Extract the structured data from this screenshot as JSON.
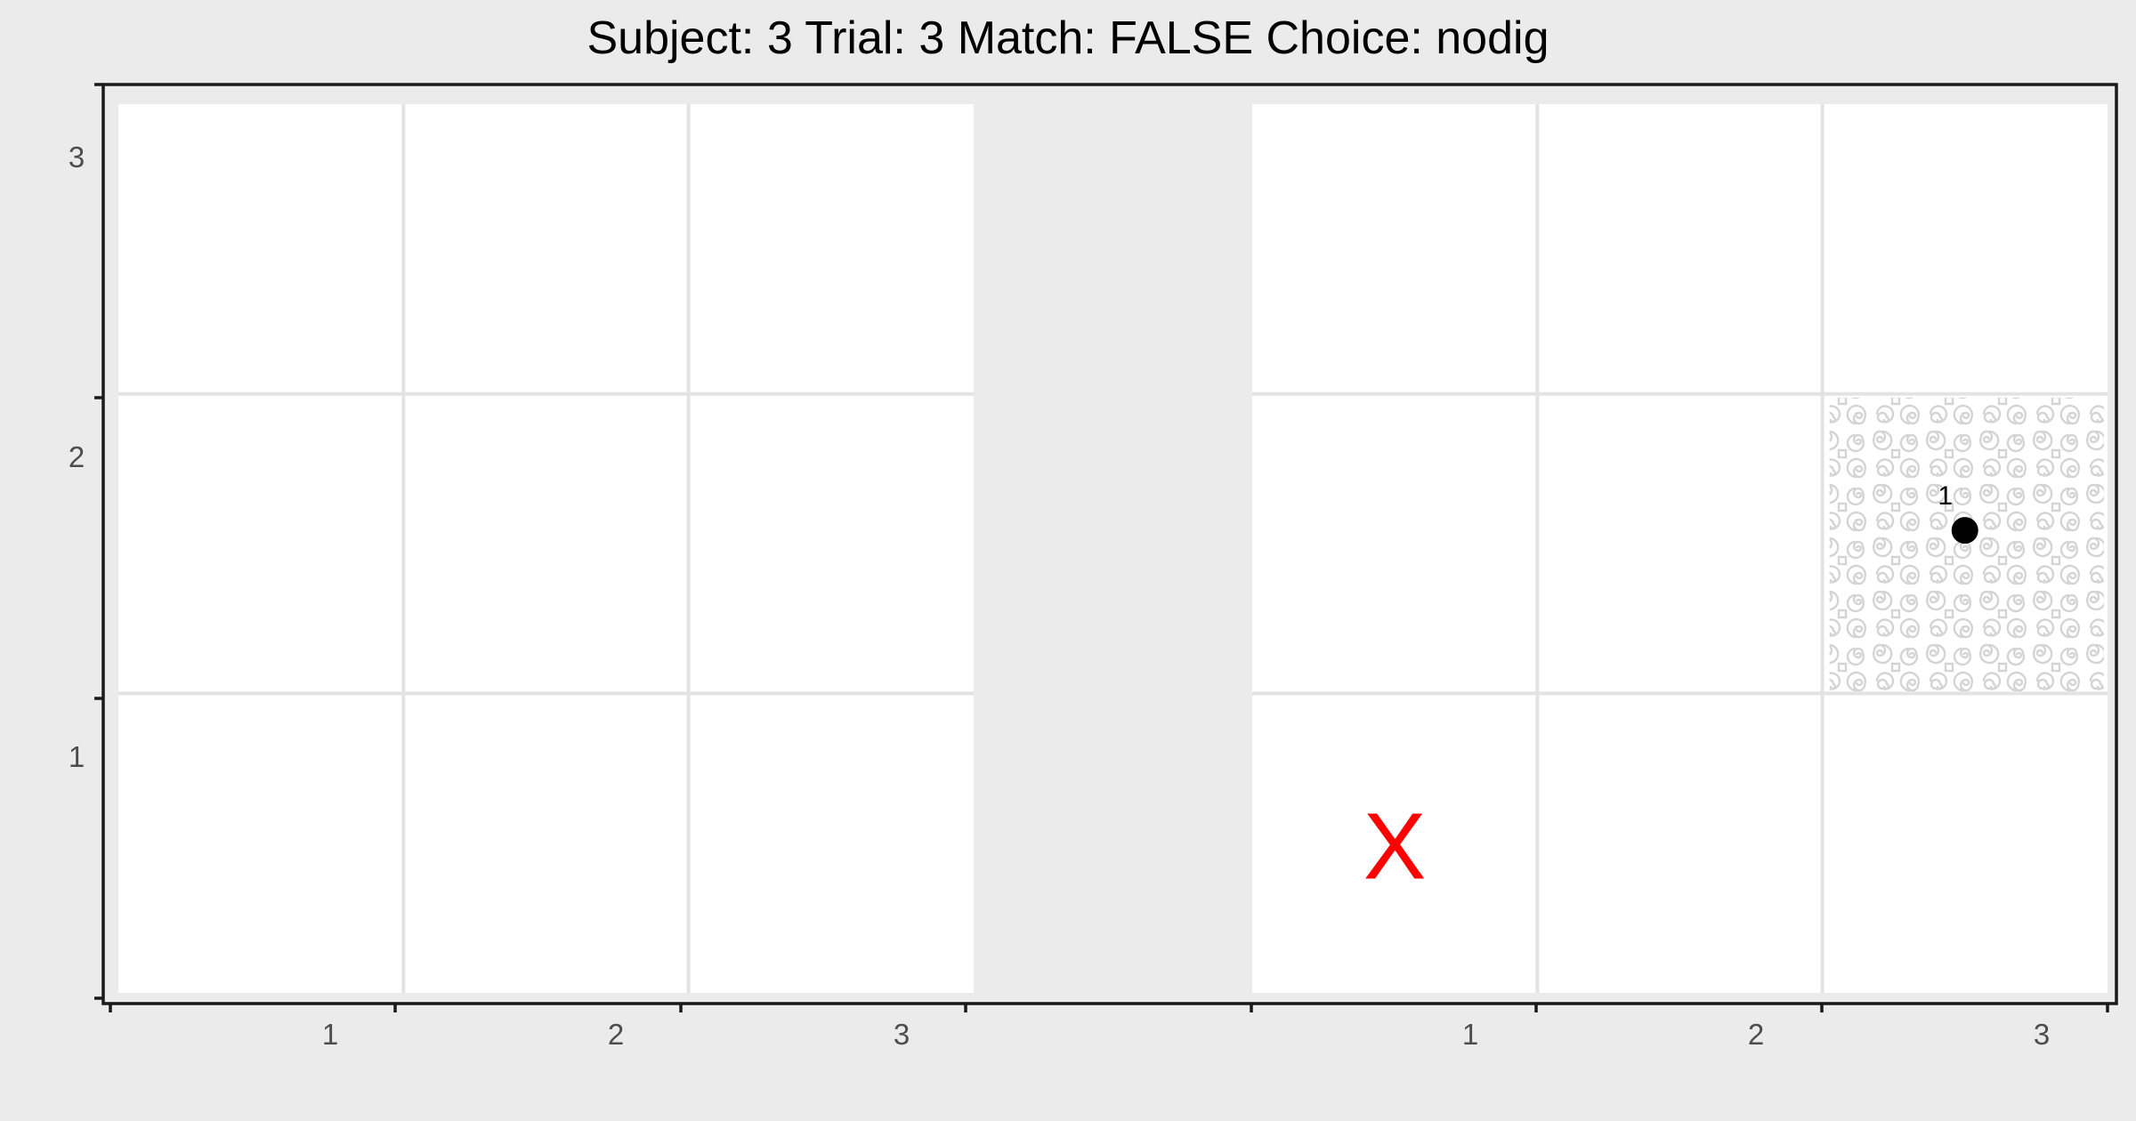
{
  "title": "Subject:  3  Trial:  3  Match: FALSE  Choice: nodig",
  "colors": {
    "background": "#ebebeb",
    "cell": "#ffffff",
    "gridline": "#e3e3e3",
    "frame": "#1a1a1a",
    "texture": "#d4d4d4",
    "point": "#000000",
    "marker": "#ff0000",
    "tick_label": "#4d4d4d"
  },
  "chart_data": {
    "type": "scatter",
    "panels": [
      {
        "name": "left-grid",
        "x_ticks": [
          "1",
          "2",
          "3"
        ],
        "y_ticks": [
          "1",
          "2",
          "3"
        ],
        "textured_cells": [],
        "points": [],
        "markers": []
      },
      {
        "name": "right-grid",
        "x_ticks": [
          "1",
          "2",
          "3"
        ],
        "y_ticks": [
          "1",
          "2",
          "3"
        ],
        "textured_cells": [
          {
            "col": 3,
            "row": 2
          }
        ],
        "points": [
          {
            "x": 3,
            "y": 2,
            "label": "1"
          }
        ],
        "markers": [
          {
            "x": 1,
            "y": 1,
            "symbol": "X"
          }
        ]
      }
    ],
    "grid": "3x3 per panel",
    "xlim": [
      0.5,
      3.5
    ],
    "ylim": [
      0.5,
      3.5
    ]
  }
}
